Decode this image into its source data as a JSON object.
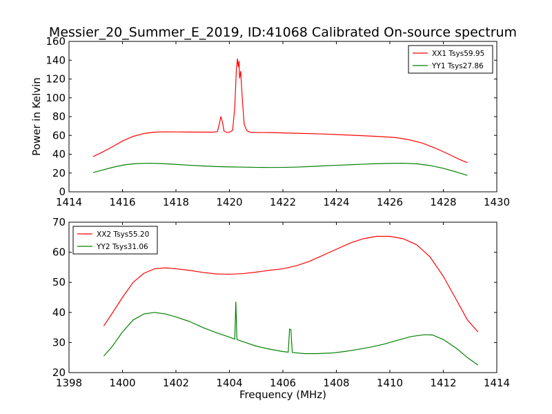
{
  "title": "Messier_20_Summer_E_2019, ID:41068 Calibrated On-source spectrum",
  "chart_data": [
    {
      "type": "line",
      "title": "Messier_20_Summer_E_2019, ID:41068 Calibrated On-source spectrum",
      "xlabel": "",
      "ylabel": "Power in Kelvin",
      "xlim": [
        1414,
        1430
      ],
      "ylim": [
        0,
        160
      ],
      "xticks": [
        1414,
        1416,
        1418,
        1420,
        1422,
        1424,
        1426,
        1428,
        1430
      ],
      "yticks": [
        0,
        20,
        40,
        60,
        80,
        100,
        120,
        140,
        160
      ],
      "grid": false,
      "legend_position": "top-right",
      "series": [
        {
          "name": "XX1 Tsys59.95",
          "color": "#ff0000",
          "points": [
            [
              1414.9,
              37.5
            ],
            [
              1415.2,
              41.5
            ],
            [
              1415.6,
              47.5
            ],
            [
              1416.0,
              54.0
            ],
            [
              1416.4,
              59.0
            ],
            [
              1416.8,
              62.0
            ],
            [
              1417.2,
              63.5
            ],
            [
              1417.6,
              63.8
            ],
            [
              1418.0,
              63.7
            ],
            [
              1418.5,
              63.6
            ],
            [
              1419.0,
              63.5
            ],
            [
              1419.4,
              63.5
            ],
            [
              1419.55,
              64.0
            ],
            [
              1419.62,
              72.0
            ],
            [
              1419.68,
              80.0
            ],
            [
              1419.74,
              74.0
            ],
            [
              1419.8,
              64.5
            ],
            [
              1419.9,
              63.2
            ],
            [
              1420.0,
              63.3
            ],
            [
              1420.12,
              65.5
            ],
            [
              1420.2,
              90.0
            ],
            [
              1420.26,
              130.0
            ],
            [
              1420.3,
              141.5
            ],
            [
              1420.33,
              133.0
            ],
            [
              1420.36,
              139.0
            ],
            [
              1420.38,
              121.0
            ],
            [
              1420.42,
              128.0
            ],
            [
              1420.48,
              100.0
            ],
            [
              1420.55,
              72.0
            ],
            [
              1420.65,
              65.0
            ],
            [
              1420.8,
              63.2
            ],
            [
              1421.5,
              63.0
            ],
            [
              1422.5,
              62.3
            ],
            [
              1423.5,
              61.5
            ],
            [
              1424.5,
              60.3
            ],
            [
              1425.5,
              59.0
            ],
            [
              1426.2,
              57.8
            ],
            [
              1426.7,
              55.5
            ],
            [
              1427.2,
              52.0
            ],
            [
              1427.7,
              46.5
            ],
            [
              1428.2,
              40.0
            ],
            [
              1428.6,
              34.5
            ],
            [
              1428.9,
              31.0
            ]
          ]
        },
        {
          "name": "YY1 Tsys27.86",
          "color": "#008000",
          "points": [
            [
              1414.9,
              20.5
            ],
            [
              1415.3,
              23.5
            ],
            [
              1415.7,
              26.5
            ],
            [
              1416.1,
              28.8
            ],
            [
              1416.5,
              30.0
            ],
            [
              1417.0,
              30.4
            ],
            [
              1417.5,
              30.0
            ],
            [
              1418.0,
              29.2
            ],
            [
              1418.5,
              28.3
            ],
            [
              1419.0,
              27.5
            ],
            [
              1419.5,
              26.9
            ],
            [
              1420.0,
              26.5
            ],
            [
              1420.5,
              26.3
            ],
            [
              1421.0,
              26.0
            ],
            [
              1421.5,
              25.9
            ],
            [
              1422.0,
              26.0
            ],
            [
              1422.5,
              26.3
            ],
            [
              1423.0,
              26.9
            ],
            [
              1423.5,
              27.6
            ],
            [
              1424.0,
              28.2
            ],
            [
              1424.5,
              28.8
            ],
            [
              1425.0,
              29.4
            ],
            [
              1425.5,
              29.9
            ],
            [
              1426.0,
              30.3
            ],
            [
              1426.5,
              30.4
            ],
            [
              1427.0,
              29.8
            ],
            [
              1427.5,
              28.0
            ],
            [
              1428.0,
              25.0
            ],
            [
              1428.5,
              21.0
            ],
            [
              1428.9,
              17.5
            ]
          ]
        }
      ]
    },
    {
      "type": "line",
      "title": "",
      "xlabel": "Frequency (MHz)",
      "ylabel": "",
      "xlim": [
        1398,
        1414
      ],
      "ylim": [
        20,
        70
      ],
      "xticks": [
        1398,
        1400,
        1402,
        1404,
        1406,
        1408,
        1410,
        1412,
        1414
      ],
      "yticks": [
        20,
        30,
        40,
        50,
        60,
        70
      ],
      "grid": false,
      "legend_position": "top-left",
      "series": [
        {
          "name": "XX2 Tsys55.20",
          "color": "#ff0000",
          "points": [
            [
              1399.3,
              35.5
            ],
            [
              1399.6,
              39.5
            ],
            [
              1400.0,
              45.0
            ],
            [
              1400.4,
              50.0
            ],
            [
              1400.8,
              53.0
            ],
            [
              1401.2,
              54.5
            ],
            [
              1401.6,
              54.8
            ],
            [
              1402.0,
              54.5
            ],
            [
              1402.5,
              54.0
            ],
            [
              1403.0,
              53.3
            ],
            [
              1403.5,
              52.8
            ],
            [
              1404.0,
              52.7
            ],
            [
              1404.5,
              52.9
            ],
            [
              1405.0,
              53.4
            ],
            [
              1405.5,
              54.0
            ],
            [
              1406.0,
              54.5
            ],
            [
              1406.5,
              55.5
            ],
            [
              1407.0,
              57.0
            ],
            [
              1407.5,
              59.0
            ],
            [
              1408.0,
              61.0
            ],
            [
              1408.5,
              63.0
            ],
            [
              1409.0,
              64.5
            ],
            [
              1409.5,
              65.3
            ],
            [
              1410.0,
              65.3
            ],
            [
              1410.5,
              64.5
            ],
            [
              1411.0,
              62.5
            ],
            [
              1411.5,
              58.5
            ],
            [
              1412.0,
              52.0
            ],
            [
              1412.5,
              44.0
            ],
            [
              1412.9,
              37.5
            ],
            [
              1413.3,
              33.5
            ]
          ]
        },
        {
          "name": "YY2 Tsys31.06",
          "color": "#008000",
          "points": [
            [
              1399.3,
              25.5
            ],
            [
              1399.6,
              28.5
            ],
            [
              1400.0,
              33.5
            ],
            [
              1400.4,
              37.5
            ],
            [
              1400.8,
              39.5
            ],
            [
              1401.2,
              40.0
            ],
            [
              1401.6,
              39.5
            ],
            [
              1402.0,
              38.5
            ],
            [
              1402.5,
              37.0
            ],
            [
              1403.0,
              35.0
            ],
            [
              1403.5,
              33.3
            ],
            [
              1404.0,
              31.8
            ],
            [
              1404.2,
              31.1
            ],
            [
              1404.24,
              43.5
            ],
            [
              1404.28,
              31.0
            ],
            [
              1404.5,
              30.3
            ],
            [
              1405.0,
              28.8
            ],
            [
              1405.5,
              27.8
            ],
            [
              1406.0,
              27.0
            ],
            [
              1406.2,
              26.8
            ],
            [
              1406.25,
              34.5
            ],
            [
              1406.3,
              34.2
            ],
            [
              1406.35,
              26.7
            ],
            [
              1406.8,
              26.3
            ],
            [
              1407.3,
              26.3
            ],
            [
              1407.8,
              26.5
            ],
            [
              1408.3,
              27.0
            ],
            [
              1408.8,
              27.7
            ],
            [
              1409.3,
              28.5
            ],
            [
              1409.8,
              29.5
            ],
            [
              1410.3,
              30.8
            ],
            [
              1410.8,
              32.0
            ],
            [
              1411.3,
              32.6
            ],
            [
              1411.6,
              32.5
            ],
            [
              1412.0,
              31.0
            ],
            [
              1412.5,
              28.0
            ],
            [
              1412.9,
              25.0
            ],
            [
              1413.3,
              22.5
            ]
          ]
        }
      ]
    }
  ]
}
